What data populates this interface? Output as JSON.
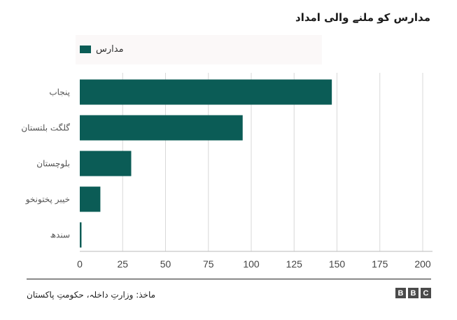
{
  "chart_data": {
    "type": "bar",
    "orientation": "horizontal",
    "title": "مدارس کو ملنے والی امداد",
    "categories": [
      "پنجاب",
      "گلگت بلتستان",
      "بلوچستان",
      "خیبر پختونخو",
      "سندھ"
    ],
    "series": [
      {
        "name": "مدارس",
        "values": [
          147,
          95,
          30,
          12,
          1
        ]
      }
    ],
    "xlim": [
      0,
      200
    ],
    "xticks": [
      0,
      25,
      50,
      75,
      100,
      125,
      150,
      175,
      200
    ],
    "grid": true,
    "legend": "top",
    "bar_color": "#0b5c56"
  },
  "footer": {
    "source": "ماخذ: وزارتِ داخلہ، حکومتِ پاکستان",
    "logo_letters": [
      "B",
      "B",
      "C"
    ]
  }
}
